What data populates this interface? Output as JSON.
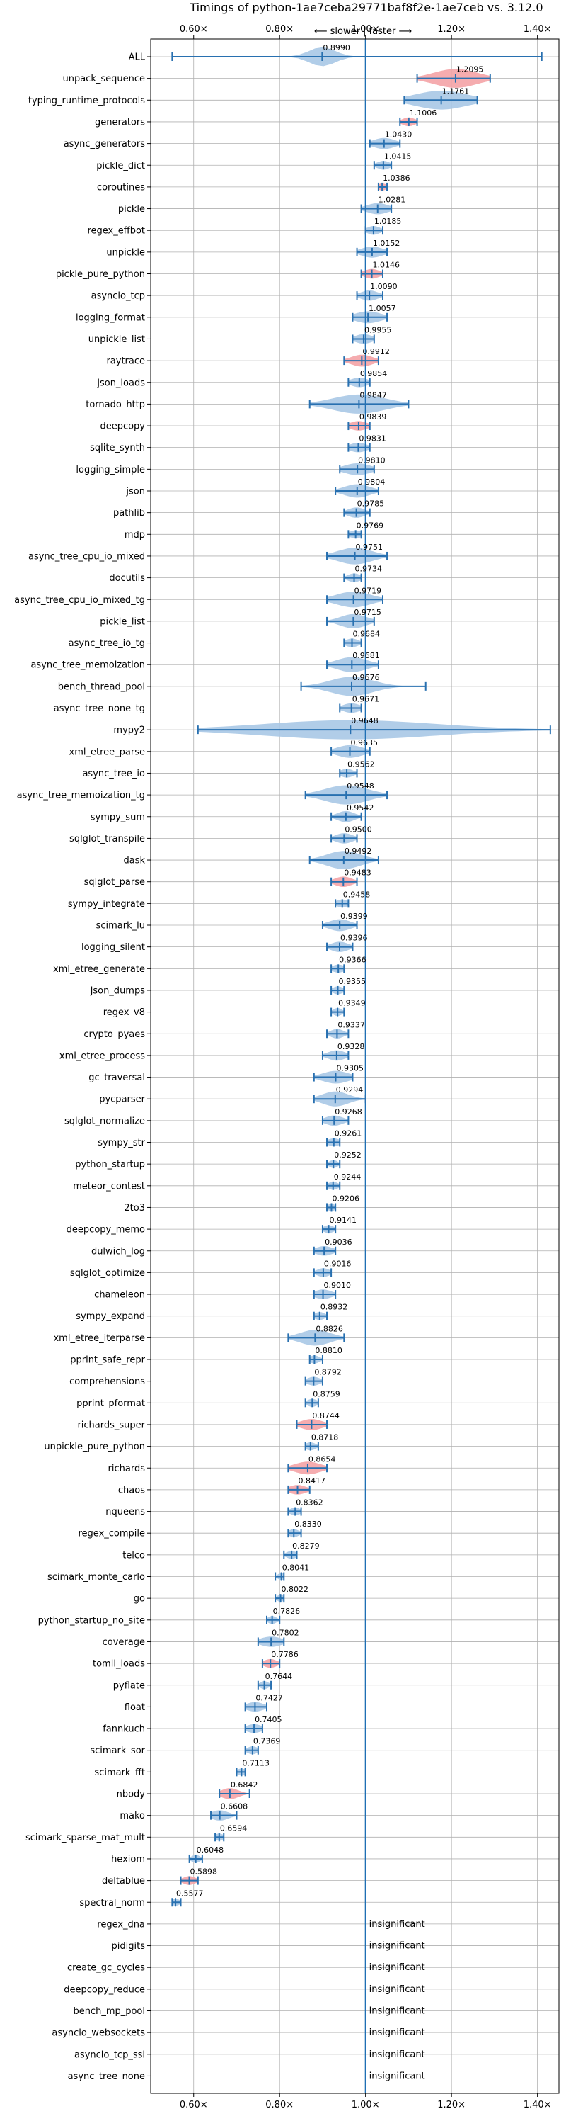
{
  "chart_data": {
    "type": "violin",
    "title": "Timings of python-1ae7ceba29771baf8f2e-1ae7ceb vs. 3.12.0",
    "direction_label": "⟵ slower | faster ⟶",
    "x_ticks": [
      "0.60×",
      "0.80×",
      "1.00×",
      "1.20×",
      "1.40×"
    ],
    "x_tick_values": [
      0.6,
      0.8,
      1.0,
      1.2,
      1.4
    ],
    "xlim": [
      0.5,
      1.45
    ],
    "reference_line": 1.0,
    "grid": true,
    "colors": {
      "violin_default": "#a9c8e6",
      "violin_highlight": "#f4a3a6",
      "errorbar": "#2870b0",
      "reference": "#1f6fb4"
    },
    "benchmarks": [
      {
        "name": "ALL",
        "value": 0.899,
        "label": "0.8990",
        "lo": 0.55,
        "hi": 1.41,
        "spread": 0.03,
        "highlight": false
      },
      {
        "name": "unpack_sequence",
        "value": 1.2095,
        "label": "1.2095",
        "lo": 1.12,
        "hi": 1.29,
        "spread": 0.05,
        "highlight": true
      },
      {
        "name": "typing_runtime_protocols",
        "value": 1.1761,
        "label": "1.1761",
        "lo": 1.09,
        "hi": 1.26,
        "spread": 0.06,
        "highlight": false
      },
      {
        "name": "generators",
        "value": 1.1006,
        "label": "1.1006",
        "lo": 1.08,
        "hi": 1.12,
        "spread": 0.015,
        "highlight": true
      },
      {
        "name": "async_generators",
        "value": 1.043,
        "label": "1.0430",
        "lo": 1.01,
        "hi": 1.08,
        "spread": 0.025,
        "highlight": false
      },
      {
        "name": "pickle_dict",
        "value": 1.0415,
        "label": "1.0415",
        "lo": 1.02,
        "hi": 1.06,
        "spread": 0.015,
        "highlight": false
      },
      {
        "name": "coroutines",
        "value": 1.0386,
        "label": "1.0386",
        "lo": 1.03,
        "hi": 1.05,
        "spread": 0.01,
        "highlight": true
      },
      {
        "name": "pickle",
        "value": 1.0281,
        "label": "1.0281",
        "lo": 0.99,
        "hi": 1.06,
        "spread": 0.025,
        "highlight": false
      },
      {
        "name": "regex_effbot",
        "value": 1.0185,
        "label": "1.0185",
        "lo": 1.0,
        "hi": 1.04,
        "spread": 0.015,
        "highlight": false
      },
      {
        "name": "unpickle",
        "value": 1.0152,
        "label": "1.0152",
        "lo": 0.98,
        "hi": 1.05,
        "spread": 0.025,
        "highlight": false
      },
      {
        "name": "pickle_pure_python",
        "value": 1.0146,
        "label": "1.0146",
        "lo": 0.99,
        "hi": 1.04,
        "spread": 0.018,
        "highlight": true
      },
      {
        "name": "asyncio_tcp",
        "value": 1.009,
        "label": "1.0090",
        "lo": 0.98,
        "hi": 1.04,
        "spread": 0.02,
        "highlight": false
      },
      {
        "name": "logging_format",
        "value": 1.0057,
        "label": "1.0057",
        "lo": 0.97,
        "hi": 1.05,
        "spread": 0.03,
        "highlight": false
      },
      {
        "name": "unpickle_list",
        "value": 0.9955,
        "label": "0.9955",
        "lo": 0.97,
        "hi": 1.02,
        "spread": 0.02,
        "highlight": false
      },
      {
        "name": "raytrace",
        "value": 0.9912,
        "label": "0.9912",
        "lo": 0.95,
        "hi": 1.03,
        "spread": 0.025,
        "highlight": true
      },
      {
        "name": "json_loads",
        "value": 0.9854,
        "label": "0.9854",
        "lo": 0.96,
        "hi": 1.01,
        "spread": 0.02,
        "highlight": false
      },
      {
        "name": "tornado_http",
        "value": 0.9847,
        "label": "0.9847",
        "lo": 0.87,
        "hi": 1.1,
        "spread": 0.06,
        "highlight": false
      },
      {
        "name": "deepcopy",
        "value": 0.9839,
        "label": "0.9839",
        "lo": 0.96,
        "hi": 1.01,
        "spread": 0.02,
        "highlight": true
      },
      {
        "name": "sqlite_synth",
        "value": 0.9831,
        "label": "0.9831",
        "lo": 0.96,
        "hi": 1.01,
        "spread": 0.02,
        "highlight": false
      },
      {
        "name": "logging_simple",
        "value": 0.981,
        "label": "0.9810",
        "lo": 0.94,
        "hi": 1.02,
        "spread": 0.03,
        "highlight": false
      },
      {
        "name": "json",
        "value": 0.9804,
        "label": "0.9804",
        "lo": 0.93,
        "hi": 1.03,
        "spread": 0.03,
        "highlight": false
      },
      {
        "name": "pathlib",
        "value": 0.9785,
        "label": "0.9785",
        "lo": 0.95,
        "hi": 1.01,
        "spread": 0.02,
        "highlight": false
      },
      {
        "name": "mdp",
        "value": 0.9769,
        "label": "0.9769",
        "lo": 0.96,
        "hi": 0.99,
        "spread": 0.015,
        "highlight": false
      },
      {
        "name": "async_tree_cpu_io_mixed",
        "value": 0.9751,
        "label": "0.9751",
        "lo": 0.91,
        "hi": 1.05,
        "spread": 0.04,
        "highlight": false
      },
      {
        "name": "docutils",
        "value": 0.9734,
        "label": "0.9734",
        "lo": 0.95,
        "hi": 0.99,
        "spread": 0.015,
        "highlight": false
      },
      {
        "name": "async_tree_cpu_io_mixed_tg",
        "value": 0.9719,
        "label": "0.9719",
        "lo": 0.91,
        "hi": 1.04,
        "spread": 0.04,
        "highlight": false
      },
      {
        "name": "pickle_list",
        "value": 0.9715,
        "label": "0.9715",
        "lo": 0.91,
        "hi": 1.02,
        "spread": 0.03,
        "highlight": false
      },
      {
        "name": "async_tree_io_tg",
        "value": 0.9684,
        "label": "0.9684",
        "lo": 0.95,
        "hi": 0.99,
        "spread": 0.015,
        "highlight": false
      },
      {
        "name": "async_tree_memoization",
        "value": 0.9681,
        "label": "0.9681",
        "lo": 0.91,
        "hi": 1.03,
        "spread": 0.035,
        "highlight": false
      },
      {
        "name": "bench_thread_pool",
        "value": 0.9676,
        "label": "0.9676",
        "lo": 0.85,
        "hi": 1.14,
        "spread": 0.05,
        "highlight": false
      },
      {
        "name": "async_tree_none_tg",
        "value": 0.9671,
        "label": "0.9671",
        "lo": 0.94,
        "hi": 0.99,
        "spread": 0.02,
        "highlight": false
      },
      {
        "name": "mypy2",
        "value": 0.9648,
        "label": "0.9648",
        "lo": 0.61,
        "hi": 1.43,
        "spread": 0.2,
        "highlight": false
      },
      {
        "name": "xml_etree_parse",
        "value": 0.9635,
        "label": "0.9635",
        "lo": 0.92,
        "hi": 1.01,
        "spread": 0.03,
        "highlight": false
      },
      {
        "name": "async_tree_io",
        "value": 0.9562,
        "label": "0.9562",
        "lo": 0.94,
        "hi": 0.98,
        "spread": 0.015,
        "highlight": false
      },
      {
        "name": "async_tree_memoization_tg",
        "value": 0.9548,
        "label": "0.9548",
        "lo": 0.86,
        "hi": 1.05,
        "spread": 0.05,
        "highlight": false
      },
      {
        "name": "sympy_sum",
        "value": 0.9542,
        "label": "0.9542",
        "lo": 0.92,
        "hi": 0.99,
        "spread": 0.02,
        "highlight": false
      },
      {
        "name": "sqlglot_transpile",
        "value": 0.95,
        "label": "0.9500",
        "lo": 0.92,
        "hi": 0.98,
        "spread": 0.02,
        "highlight": false
      },
      {
        "name": "dask",
        "value": 0.9492,
        "label": "0.9492",
        "lo": 0.87,
        "hi": 1.03,
        "spread": 0.04,
        "highlight": false
      },
      {
        "name": "sqlglot_parse",
        "value": 0.9483,
        "label": "0.9483",
        "lo": 0.92,
        "hi": 0.98,
        "spread": 0.02,
        "highlight": true
      },
      {
        "name": "sympy_integrate",
        "value": 0.9458,
        "label": "0.9458",
        "lo": 0.93,
        "hi": 0.96,
        "spread": 0.015,
        "highlight": false
      },
      {
        "name": "scimark_lu",
        "value": 0.9399,
        "label": "0.9399",
        "lo": 0.9,
        "hi": 0.98,
        "spread": 0.025,
        "highlight": false
      },
      {
        "name": "logging_silent",
        "value": 0.9396,
        "label": "0.9396",
        "lo": 0.91,
        "hi": 0.97,
        "spread": 0.02,
        "highlight": false
      },
      {
        "name": "xml_etree_generate",
        "value": 0.9366,
        "label": "0.9366",
        "lo": 0.92,
        "hi": 0.95,
        "spread": 0.015,
        "highlight": false
      },
      {
        "name": "json_dumps",
        "value": 0.9355,
        "label": "0.9355",
        "lo": 0.92,
        "hi": 0.95,
        "spread": 0.012,
        "highlight": false
      },
      {
        "name": "regex_v8",
        "value": 0.9349,
        "label": "0.9349",
        "lo": 0.92,
        "hi": 0.95,
        "spread": 0.01,
        "highlight": false
      },
      {
        "name": "crypto_pyaes",
        "value": 0.9337,
        "label": "0.9337",
        "lo": 0.91,
        "hi": 0.96,
        "spread": 0.015,
        "highlight": false
      },
      {
        "name": "xml_etree_process",
        "value": 0.9328,
        "label": "0.9328",
        "lo": 0.9,
        "hi": 0.96,
        "spread": 0.02,
        "highlight": false
      },
      {
        "name": "gc_traversal",
        "value": 0.9305,
        "label": "0.9305",
        "lo": 0.88,
        "hi": 0.97,
        "spread": 0.03,
        "highlight": false
      },
      {
        "name": "pycparser",
        "value": 0.9294,
        "label": "0.9294",
        "lo": 0.88,
        "hi": 1.0,
        "spread": 0.03,
        "highlight": false
      },
      {
        "name": "sqlglot_normalize",
        "value": 0.9268,
        "label": "0.9268",
        "lo": 0.9,
        "hi": 0.96,
        "spread": 0.02,
        "highlight": false
      },
      {
        "name": "sympy_str",
        "value": 0.9261,
        "label": "0.9261",
        "lo": 0.91,
        "hi": 0.94,
        "spread": 0.015,
        "highlight": false
      },
      {
        "name": "python_startup",
        "value": 0.9252,
        "label": "0.9252",
        "lo": 0.91,
        "hi": 0.94,
        "spread": 0.01,
        "highlight": false
      },
      {
        "name": "meteor_contest",
        "value": 0.9244,
        "label": "0.9244",
        "lo": 0.91,
        "hi": 0.94,
        "spread": 0.012,
        "highlight": false
      },
      {
        "name": "2to3",
        "value": 0.9206,
        "label": "0.9206",
        "lo": 0.91,
        "hi": 0.93,
        "spread": 0.01,
        "highlight": false
      },
      {
        "name": "deepcopy_memo",
        "value": 0.9141,
        "label": "0.9141",
        "lo": 0.9,
        "hi": 0.93,
        "spread": 0.012,
        "highlight": false
      },
      {
        "name": "dulwich_log",
        "value": 0.9036,
        "label": "0.9036",
        "lo": 0.88,
        "hi": 0.93,
        "spread": 0.02,
        "highlight": false
      },
      {
        "name": "sqlglot_optimize",
        "value": 0.9016,
        "label": "0.9016",
        "lo": 0.88,
        "hi": 0.92,
        "spread": 0.015,
        "highlight": false
      },
      {
        "name": "chameleon",
        "value": 0.901,
        "label": "0.9010",
        "lo": 0.88,
        "hi": 0.93,
        "spread": 0.02,
        "highlight": false
      },
      {
        "name": "sympy_expand",
        "value": 0.8932,
        "label": "0.8932",
        "lo": 0.88,
        "hi": 0.91,
        "spread": 0.012,
        "highlight": false
      },
      {
        "name": "xml_etree_iterparse",
        "value": 0.8826,
        "label": "0.8826",
        "lo": 0.82,
        "hi": 0.95,
        "spread": 0.035,
        "highlight": false
      },
      {
        "name": "pprint_safe_repr",
        "value": 0.881,
        "label": "0.8810",
        "lo": 0.87,
        "hi": 0.9,
        "spread": 0.012,
        "highlight": false
      },
      {
        "name": "comprehensions",
        "value": 0.8792,
        "label": "0.8792",
        "lo": 0.86,
        "hi": 0.9,
        "spread": 0.015,
        "highlight": false
      },
      {
        "name": "pprint_pformat",
        "value": 0.8759,
        "label": "0.8759",
        "lo": 0.86,
        "hi": 0.89,
        "spread": 0.012,
        "highlight": false
      },
      {
        "name": "richards_super",
        "value": 0.8744,
        "label": "0.8744",
        "lo": 0.84,
        "hi": 0.91,
        "spread": 0.025,
        "highlight": true
      },
      {
        "name": "unpickle_pure_python",
        "value": 0.8718,
        "label": "0.8718",
        "lo": 0.86,
        "hi": 0.89,
        "spread": 0.012,
        "highlight": false
      },
      {
        "name": "richards",
        "value": 0.8654,
        "label": "0.8654",
        "lo": 0.82,
        "hi": 0.91,
        "spread": 0.03,
        "highlight": true
      },
      {
        "name": "chaos",
        "value": 0.8417,
        "label": "0.8417",
        "lo": 0.82,
        "hi": 0.87,
        "spread": 0.02,
        "highlight": true
      },
      {
        "name": "nqueens",
        "value": 0.8362,
        "label": "0.8362",
        "lo": 0.82,
        "hi": 0.85,
        "spread": 0.012,
        "highlight": false
      },
      {
        "name": "regex_compile",
        "value": 0.833,
        "label": "0.8330",
        "lo": 0.82,
        "hi": 0.85,
        "spread": 0.012,
        "highlight": false
      },
      {
        "name": "telco",
        "value": 0.8279,
        "label": "0.8279",
        "lo": 0.81,
        "hi": 0.84,
        "spread": 0.012,
        "highlight": false
      },
      {
        "name": "scimark_monte_carlo",
        "value": 0.8041,
        "label": "0.8041",
        "lo": 0.79,
        "hi": 0.81,
        "spread": 0.008,
        "highlight": false
      },
      {
        "name": "go",
        "value": 0.8022,
        "label": "0.8022",
        "lo": 0.79,
        "hi": 0.81,
        "spread": 0.008,
        "highlight": false
      },
      {
        "name": "python_startup_no_site",
        "value": 0.7826,
        "label": "0.7826",
        "lo": 0.77,
        "hi": 0.8,
        "spread": 0.01,
        "highlight": false
      },
      {
        "name": "coverage",
        "value": 0.7802,
        "label": "0.7802",
        "lo": 0.75,
        "hi": 0.81,
        "spread": 0.025,
        "highlight": false
      },
      {
        "name": "tomli_loads",
        "value": 0.7786,
        "label": "0.7786",
        "lo": 0.76,
        "hi": 0.8,
        "spread": 0.015,
        "highlight": true
      },
      {
        "name": "pyflate",
        "value": 0.7644,
        "label": "0.7644",
        "lo": 0.75,
        "hi": 0.78,
        "spread": 0.01,
        "highlight": false
      },
      {
        "name": "float",
        "value": 0.7427,
        "label": "0.7427",
        "lo": 0.72,
        "hi": 0.77,
        "spread": 0.02,
        "highlight": false
      },
      {
        "name": "fannkuch",
        "value": 0.7405,
        "label": "0.7405",
        "lo": 0.72,
        "hi": 0.76,
        "spread": 0.018,
        "highlight": false
      },
      {
        "name": "scimark_sor",
        "value": 0.7369,
        "label": "0.7369",
        "lo": 0.72,
        "hi": 0.75,
        "spread": 0.012,
        "highlight": false
      },
      {
        "name": "scimark_fft",
        "value": 0.7113,
        "label": "0.7113",
        "lo": 0.7,
        "hi": 0.72,
        "spread": 0.01,
        "highlight": false
      },
      {
        "name": "nbody",
        "value": 0.6842,
        "label": "0.6842",
        "lo": 0.66,
        "hi": 0.73,
        "spread": 0.02,
        "highlight": true
      },
      {
        "name": "mako",
        "value": 0.6608,
        "label": "0.6608",
        "lo": 0.64,
        "hi": 0.7,
        "spread": 0.02,
        "highlight": false
      },
      {
        "name": "scimark_sparse_mat_mult",
        "value": 0.6594,
        "label": "0.6594",
        "lo": 0.65,
        "hi": 0.67,
        "spread": 0.01,
        "highlight": false
      },
      {
        "name": "hexiom",
        "value": 0.6048,
        "label": "0.6048",
        "lo": 0.59,
        "hi": 0.62,
        "spread": 0.01,
        "highlight": false
      },
      {
        "name": "deltablue",
        "value": 0.5898,
        "label": "0.5898",
        "lo": 0.57,
        "hi": 0.61,
        "spread": 0.015,
        "highlight": true
      },
      {
        "name": "spectral_norm",
        "value": 0.5577,
        "label": "0.5577",
        "lo": 0.55,
        "hi": 0.57,
        "spread": 0.01,
        "highlight": false
      },
      {
        "name": "regex_dna",
        "value": null,
        "label": "insignificant"
      },
      {
        "name": "pidigits",
        "value": null,
        "label": "insignificant"
      },
      {
        "name": "create_gc_cycles",
        "value": null,
        "label": "insignificant"
      },
      {
        "name": "deepcopy_reduce",
        "value": null,
        "label": "insignificant"
      },
      {
        "name": "bench_mp_pool",
        "value": null,
        "label": "insignificant"
      },
      {
        "name": "asyncio_websockets",
        "value": null,
        "label": "insignificant"
      },
      {
        "name": "asyncio_tcp_ssl",
        "value": null,
        "label": "insignificant"
      },
      {
        "name": "async_tree_none",
        "value": null,
        "label": "insignificant"
      }
    ]
  }
}
